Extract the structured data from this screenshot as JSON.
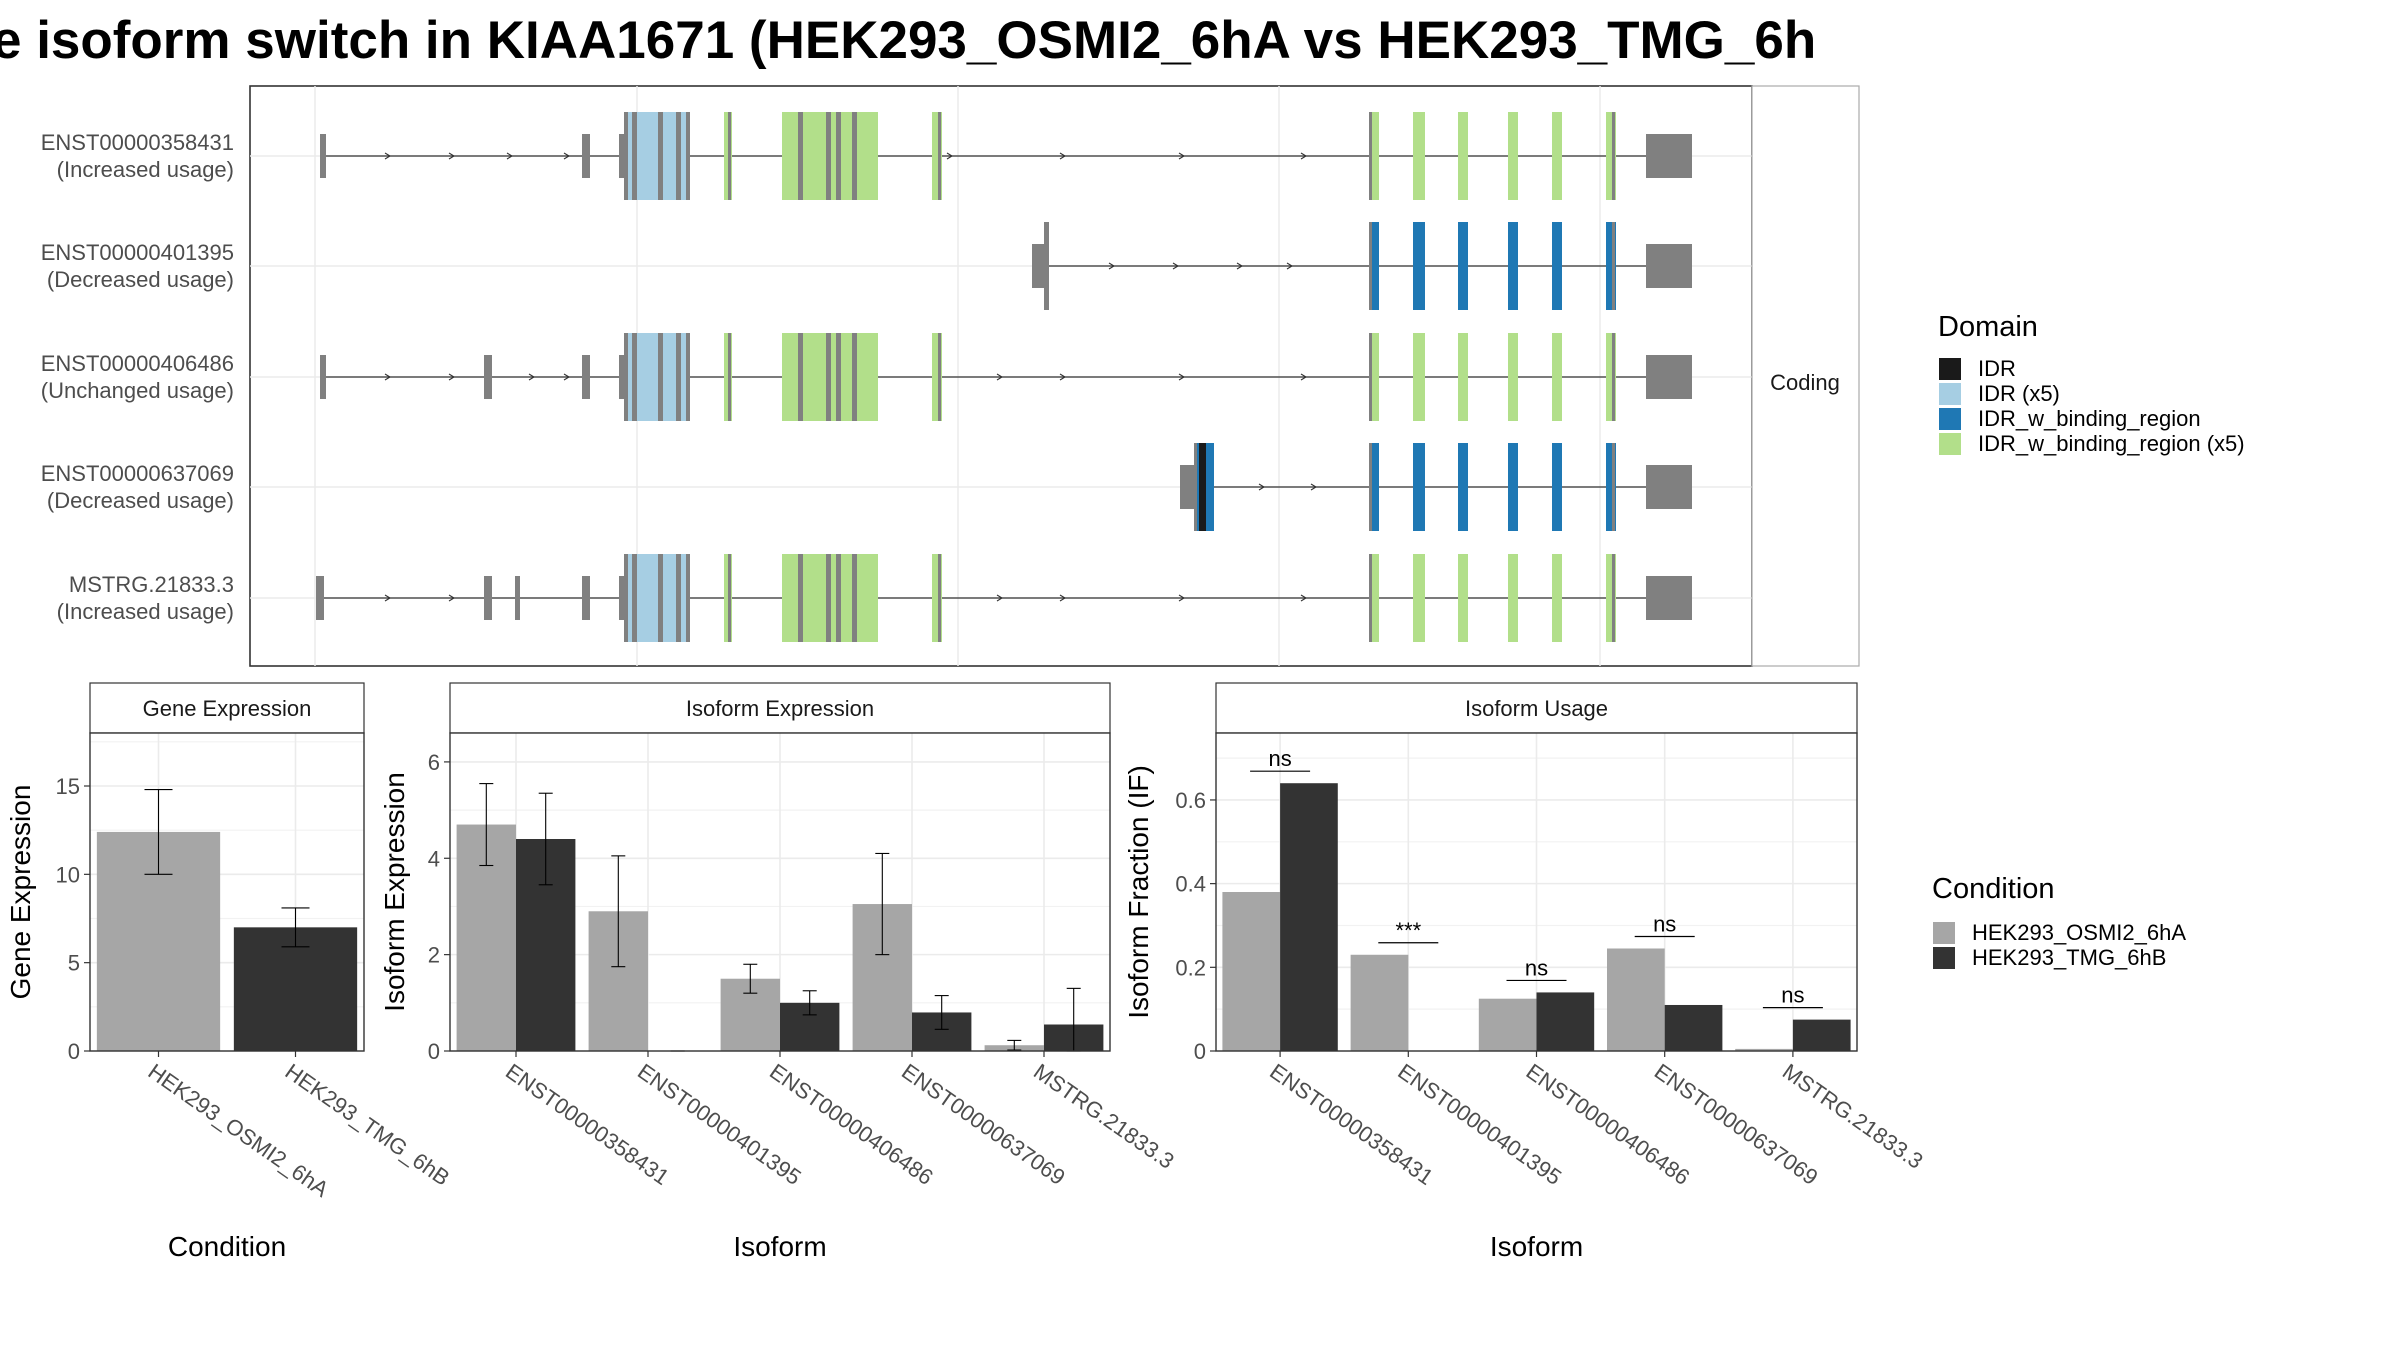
{
  "title": "e isoform switch in KIAA1671 (HEK293_OSMI2_6hA vs HEK293_TMG_6h",
  "colors": {
    "exon": "#808080",
    "IDR": "#1a1a1a",
    "IDR_x5": "#a6cee3",
    "IDR_w_binding_region": "#1f78b4",
    "IDR_w_binding_region_x5": "#b2df8a",
    "condA": "#a6a6a6",
    "condB": "#333333"
  },
  "structure_panel": {
    "strip_label": "Coding",
    "isoforms": [
      {
        "id": "ENST00000358431",
        "usage": "(Increased usage)"
      },
      {
        "id": "ENST00000401395",
        "usage": "(Decreased usage)"
      },
      {
        "id": "ENST00000406486",
        "usage": "(Unchanged usage)"
      },
      {
        "id": "ENST00000637069",
        "usage": "(Decreased usage)"
      },
      {
        "id": "MSTRG.21833.3",
        "usage": "(Increased usage)"
      }
    ]
  },
  "domain_legend": {
    "title": "Domain",
    "items": [
      {
        "label": "IDR",
        "color": "#1a1a1a"
      },
      {
        "label": "IDR (x5)",
        "color": "#a6cee3"
      },
      {
        "label": "IDR_w_binding_region",
        "color": "#1f78b4"
      },
      {
        "label": "IDR_w_binding_region (x5)",
        "color": "#b2df8a"
      }
    ]
  },
  "condition_legend": {
    "title": "Condition",
    "items": [
      {
        "label": "HEK293_OSMI2_6hA",
        "color": "#a6a6a6"
      },
      {
        "label": "HEK293_TMG_6hB",
        "color": "#333333"
      }
    ]
  },
  "chart_data": [
    {
      "type": "bar",
      "title": "Gene Expression",
      "xlabel": "Condition",
      "ylabel": "Gene Expression",
      "ylim": [
        0,
        18
      ],
      "yticks": [
        0,
        5,
        10,
        15
      ],
      "categories": [
        "HEK293_OSMI2_6hA",
        "HEK293_TMG_6hB"
      ],
      "series": [
        {
          "name": "HEK293_OSMI2_6hA",
          "values": [
            12.4,
            null
          ],
          "errors": [
            [
              10.0,
              14.8
            ],
            null
          ]
        },
        {
          "name": "HEK293_TMG_6hB",
          "values": [
            null,
            7.0
          ],
          "errors": [
            null,
            [
              5.9,
              8.1
            ]
          ]
        }
      ]
    },
    {
      "type": "bar",
      "title": "Isoform Expression",
      "xlabel": "Isoform",
      "ylabel": "Isoform Expression",
      "ylim": [
        0,
        6.6
      ],
      "yticks": [
        0,
        2,
        4,
        6
      ],
      "categories": [
        "ENST00000358431",
        "ENST00000401395",
        "ENST00000406486",
        "ENST00000637069",
        "MSTRG.21833.3"
      ],
      "series": [
        {
          "name": "HEK293_OSMI2_6hA",
          "values": [
            4.7,
            2.9,
            1.5,
            3.05,
            0.12
          ],
          "errors": [
            [
              3.85,
              5.55
            ],
            [
              1.75,
              4.05
            ],
            [
              1.2,
              1.8
            ],
            [
              2.0,
              4.1
            ],
            [
              0.02,
              0.22
            ]
          ]
        },
        {
          "name": "HEK293_TMG_6hB",
          "values": [
            4.4,
            0.0,
            1.0,
            0.8,
            0.55
          ],
          "errors": [
            [
              3.45,
              5.35
            ],
            [
              0.0,
              0.0
            ],
            [
              0.75,
              1.25
            ],
            [
              0.45,
              1.15
            ],
            [
              0.0,
              1.3
            ]
          ]
        }
      ]
    },
    {
      "type": "bar",
      "title": "Isoform Usage",
      "xlabel": "Isoform",
      "ylabel": "Isoform Fraction (IF)",
      "ylim": [
        0,
        0.76
      ],
      "yticks": [
        0.0,
        0.2,
        0.4,
        0.6
      ],
      "categories": [
        "ENST00000358431",
        "ENST00000401395",
        "ENST00000406486",
        "ENST00000637069",
        "MSTRG.21833.3"
      ],
      "significance": [
        "ns",
        "***",
        "ns",
        "ns",
        "ns"
      ],
      "series": [
        {
          "name": "HEK293_OSMI2_6hA",
          "values": [
            0.38,
            0.23,
            0.125,
            0.245,
            0.005
          ]
        },
        {
          "name": "HEK293_TMG_6hB",
          "values": [
            0.64,
            0.0,
            0.14,
            0.11,
            0.075
          ]
        }
      ]
    }
  ]
}
